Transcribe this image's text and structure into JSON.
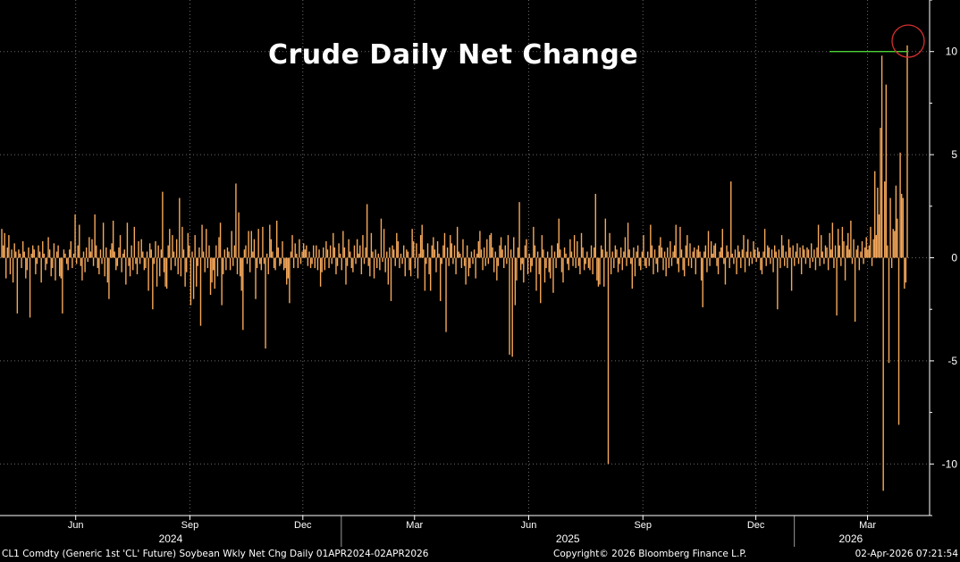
{
  "chart_data": {
    "type": "bar",
    "title": "Crude Daily Net Change",
    "ylim": [
      -12.5,
      12.5
    ],
    "y_ticks": [
      -10,
      -5,
      0,
      5,
      10
    ],
    "y_tick_labels": [
      "-10",
      "-5",
      "0",
      "5",
      "10"
    ],
    "y_axis_side": "right",
    "x_range": [
      "2024-04-01",
      "2026-04-02"
    ],
    "x_month_ticks": [
      {
        "date": "2024-06-01",
        "label": "Jun"
      },
      {
        "date": "2024-09-01",
        "label": "Sep"
      },
      {
        "date": "2024-12-01",
        "label": "Dec"
      },
      {
        "date": "2025-03-01",
        "label": "Mar"
      },
      {
        "date": "2025-06-01",
        "label": "Jun"
      },
      {
        "date": "2025-09-01",
        "label": "Sep"
      },
      {
        "date": "2025-12-01",
        "label": "Dec"
      },
      {
        "date": "2026-03-01",
        "label": "Mar"
      }
    ],
    "x_year_labels": [
      {
        "label": "2024",
        "from": "2024-04-01",
        "to": "2025-01-01"
      },
      {
        "label": "2025",
        "from": "2025-01-01",
        "to": "2026-01-01"
      },
      {
        "label": "2026",
        "from": "2026-01-01",
        "to": "2026-04-02"
      }
    ],
    "year_dividers": [
      "2025-01-01",
      "2026-01-01"
    ],
    "grid": true,
    "bar_color": "#f5a85a",
    "reference_line": {
      "y": 10,
      "from": "2026-01-20",
      "to": "2026-04-02",
      "color": "#4cd137"
    },
    "highlight_circle": {
      "date": "2026-03-31",
      "y": 10.3,
      "color": "#d32f2f"
    },
    "series": [
      {
        "values": [
          1.4,
          0.6,
          1.2,
          -1.0,
          0.5,
          1.1,
          -0.8,
          0.4,
          -1.2,
          0.7,
          0.3,
          -2.7,
          0.4,
          0.2,
          -0.5,
          0.8,
          0.3,
          -1.0,
          -0.6,
          0.5,
          -2.9,
          0.2,
          0.6,
          0.4,
          -0.8,
          -0.3,
          0.6,
          0.3,
          -1.2,
          0.8,
          0.2,
          -0.6,
          -0.3,
          1.0,
          0.4,
          -0.9,
          -0.5,
          0.7,
          -1.1,
          0.3,
          0.6,
          -0.9,
          -1.0,
          -2.7,
          0.4,
          0.2,
          -0.3,
          -0.6,
          0.4,
          0.8,
          -0.5,
          0.2,
          2.1,
          -0.3,
          0.6,
          1.6,
          -0.4,
          -1.1,
          0.3,
          -0.7,
          0.5,
          -0.2,
          1.0,
          0.3,
          0.9,
          -0.4,
          2.1,
          0.6,
          -0.5,
          -0.8,
          0.4,
          -0.3,
          1.7,
          -0.9,
          0.5,
          -1.2,
          -2.0,
          0.4,
          0.7,
          1.8,
          0.3,
          -0.6,
          -0.4,
          0.5,
          1.1,
          -0.7,
          0.2,
          0.4,
          -1.3,
          1.7,
          -0.4,
          -0.9,
          0.6,
          -0.6,
          1.5,
          -0.3,
          -0.8,
          0.8,
          -0.3,
          0.9,
          0.3,
          -0.6,
          -0.5,
          0.3,
          -1.6,
          0.7,
          0.4,
          -2.5,
          -0.3,
          0.8,
          -1.4,
          0.6,
          -0.9,
          0.4,
          3.2,
          -0.7,
          -1.4,
          -1.5,
          0.6,
          1.4,
          -0.6,
          1.1,
          0.3,
          -0.4,
          0.9,
          -0.8,
          2.9,
          -0.9,
          1.5,
          0.4,
          -1.4,
          -0.7,
          1.2,
          0.6,
          -2.3,
          0.3,
          -2.0,
          1.1,
          -1.4,
          -0.4,
          0.5,
          -3.3,
          1.6,
          0.3,
          -0.7,
          1.4,
          -0.5,
          0.6,
          -1.8,
          -1.2,
          -0.6,
          -1.5,
          0.6,
          -0.9,
          1.0,
          1.7,
          -2.3,
          -0.8,
          0.4,
          -0.6,
          0.5,
          0.3,
          -0.6,
          1.3,
          -0.4,
          0.6,
          3.6,
          -0.8,
          2.2,
          -0.9,
          -1.6,
          -3.5,
          0.4,
          0.6,
          -0.3,
          1.3,
          -0.7,
          1.3,
          0.3,
          0.9,
          -2.0,
          -0.5,
          1.4,
          -0.3,
          -0.6,
          1.5,
          -0.3,
          -4.4,
          0.2,
          -0.8,
          1.6,
          0.9,
          0.3,
          -0.5,
          -0.6,
          1.8,
          0.5,
          -0.4,
          -0.3,
          0.8,
          -0.6,
          -0.5,
          -1.3,
          -1.0,
          -2.2,
          0.3,
          1.1,
          -0.5,
          0.7,
          0.2,
          -0.5,
          0.9,
          -0.3,
          0.3,
          0.7,
          0.4,
          0.6,
          -0.4,
          0.3,
          -0.5,
          -0.3,
          0.6,
          -0.5,
          0.6,
          -0.6,
          0.4,
          -1.4,
          -0.7,
          0.5,
          -0.6,
          0.8,
          0.4,
          -0.5,
          0.6,
          -0.3,
          1.2,
          0.5,
          -0.8,
          -0.4,
          0.7,
          0.2,
          -0.6,
          1.3,
          0.5,
          -1.3,
          -0.4,
          0.9,
          0.3,
          -0.5,
          -0.7,
          0.6,
          -0.3,
          0.9,
          0.2,
          0.6,
          -0.8,
          1.1,
          -0.3,
          0.5,
          2.6,
          -0.4,
          -0.9,
          1.2,
          0.3,
          -1.0,
          0.4,
          -0.5,
          0.2,
          -0.6,
          1.9,
          -0.2,
          1.4,
          -0.7,
          0.3,
          -1.3,
          0.5,
          -2.1,
          0.6,
          0.4,
          -0.4,
          1.2,
          0.8,
          -0.5,
          0.2,
          -0.3,
          0.6,
          -0.9,
          0.4,
          0.3,
          -0.6,
          -0.9,
          1.4,
          0.8,
          -0.5,
          0.7,
          -1.0,
          0.2,
          1.1,
          1.6,
          0.4,
          -1.6,
          -0.3,
          0.7,
          -0.8,
          -1.6,
          0.6,
          1.0,
          0.4,
          -0.7,
          0.8,
          0.2,
          -2.1,
          -0.3,
          0.6,
          1.2,
          -3.6,
          0.5,
          -0.4,
          1.1,
          0.7,
          -0.3,
          0.6,
          -0.8,
          1.5,
          0.3,
          0.2,
          -0.5,
          0.9,
          -0.4,
          -1.3,
          0.6,
          -0.9,
          -0.5,
          0.3,
          -0.3,
          0.4,
          -1.0,
          0.2,
          0.8,
          1.3,
          0.4,
          -0.6,
          0.5,
          -0.4,
          0.9,
          -0.3,
          1.1,
          1.2,
          0.5,
          -0.7,
          0.3,
          -1.1,
          -0.4,
          0.6,
          1.0,
          0.4,
          -0.5,
          0.6,
          -0.3,
          1.1,
          -4.7,
          0.4,
          -4.8,
          1.0,
          -2.3,
          -1.1,
          0.5,
          2.7,
          -0.6,
          -0.3,
          -1.2,
          0.6,
          0.9,
          -0.8,
          0.2,
          -0.7,
          -0.4,
          1.5,
          0.6,
          -1.6,
          0.3,
          -0.8,
          -2.2,
          1.1,
          0.4,
          -1.2,
          -0.5,
          0.3,
          -0.7,
          -1.0,
          0.6,
          -1.7,
          0.3,
          -0.5,
          0.7,
          1.9,
          0.4,
          -0.7,
          -1.2,
          0.5,
          0.2,
          -0.3,
          -0.6,
          0.9,
          0.3,
          -0.4,
          1.1,
          -0.5,
          0.8,
          -0.4,
          -0.8,
          1.2,
          0.5,
          -0.6,
          -0.3,
          0.3,
          -0.5,
          -0.6,
          0.6,
          -0.8,
          0.5,
          3.1,
          -1.1,
          -1.4,
          -1.3,
          0.6,
          0.4,
          -1.4,
          1.9,
          0.3,
          -10.0,
          1.2,
          -0.8,
          0.3,
          -0.5,
          0.6,
          0.4,
          -0.7,
          -0.3,
          0.5,
          -0.6,
          0.3,
          1.0,
          -0.4,
          1.7,
          0.4,
          -0.3,
          -1.5,
          0.5,
          -0.9,
          0.3,
          0.6,
          -0.4,
          -0.6,
          0.3,
          1.1,
          -0.4,
          -0.5,
          0.3,
          -0.4,
          1.6,
          0.6,
          -0.8,
          0.4,
          -0.3,
          -0.7,
          0.6,
          1.0,
          0.5,
          -0.6,
          0.3,
          -0.9,
          0.5,
          -0.5,
          0.8,
          -0.4,
          0.3,
          0.6,
          1.6,
          -0.3,
          -0.7,
          1.5,
          0.4,
          -0.6,
          -0.9,
          0.6,
          1.1,
          -0.4,
          0.7,
          -0.5,
          0.3,
          0.5,
          -0.8,
          0.4,
          0.6,
          0.3,
          -1.1,
          -2.4,
          0.3,
          0.6,
          -0.7,
          1.3,
          -0.4,
          0.8,
          0.2,
          0.6,
          0.7,
          -0.4,
          -0.8,
          0.3,
          0.5,
          1.4,
          -0.3,
          -1.3,
          0.6,
          0.3,
          -0.5,
          3.7,
          0.2,
          -0.3,
          0.4,
          -0.8,
          0.6,
          0.3,
          -0.5,
          0.4,
          1.1,
          -0.7,
          0.3,
          0.9,
          -0.4,
          0.3,
          -0.3,
          0.8,
          0.4,
          -0.2,
          0.5,
          0.3,
          -0.6,
          -0.8,
          0.3,
          1.4,
          -0.4,
          0.6,
          0.5,
          -0.3,
          0.4,
          -0.7,
          0.6,
          0.3,
          -2.5,
          0.4,
          -0.5,
          1.1,
          0.6,
          -0.4,
          0.3,
          -0.5,
          0.9,
          0.5,
          -1.6,
          0.6,
          -0.4,
          0.3,
          0.7,
          -0.3,
          0.5,
          -0.8,
          0.6,
          0.4,
          -0.3,
          0.5,
          0.4,
          -0.5,
          0.7,
          -0.2,
          0.4,
          -0.6,
          0.5,
          1.6,
          -0.4,
          1.1,
          0.3,
          -0.3,
          0.6,
          0.5,
          -0.6,
          1.2,
          0.4,
          1.7,
          -0.5,
          0.6,
          -2.8,
          1.4,
          0.6,
          -0.4,
          1.5,
          0.8,
          -1.1,
          0.6,
          1.2,
          0.4,
          1.8,
          -0.3,
          0.9,
          -3.1,
          0.4,
          0.6,
          -0.6,
          0.3,
          0.8,
          -0.3,
          0.5,
          1.0,
          0.4,
          0.6,
          1.5,
          -0.4,
          0.9,
          4.2,
          1.1,
          3.4,
          2.1,
          6.3,
          9.8,
          -11.3,
          3.7,
          8.4,
          0.6,
          -5.1,
          2.9,
          -0.5,
          1.4,
          1.3,
          3.5,
          1.9,
          -8.1,
          5.1,
          3.1,
          2.9,
          -1.5,
          -1.2,
          10.3
        ]
      }
    ]
  },
  "footer": {
    "left": "CL1 Comdty (Generic 1st 'CL' Future) Soybean Wkly Net Chg Daily 01APR2024-02APR2026",
    "center": "Copyright© 2026 Bloomberg Finance L.P.",
    "right": "02-Apr-2026 07:21:54"
  }
}
